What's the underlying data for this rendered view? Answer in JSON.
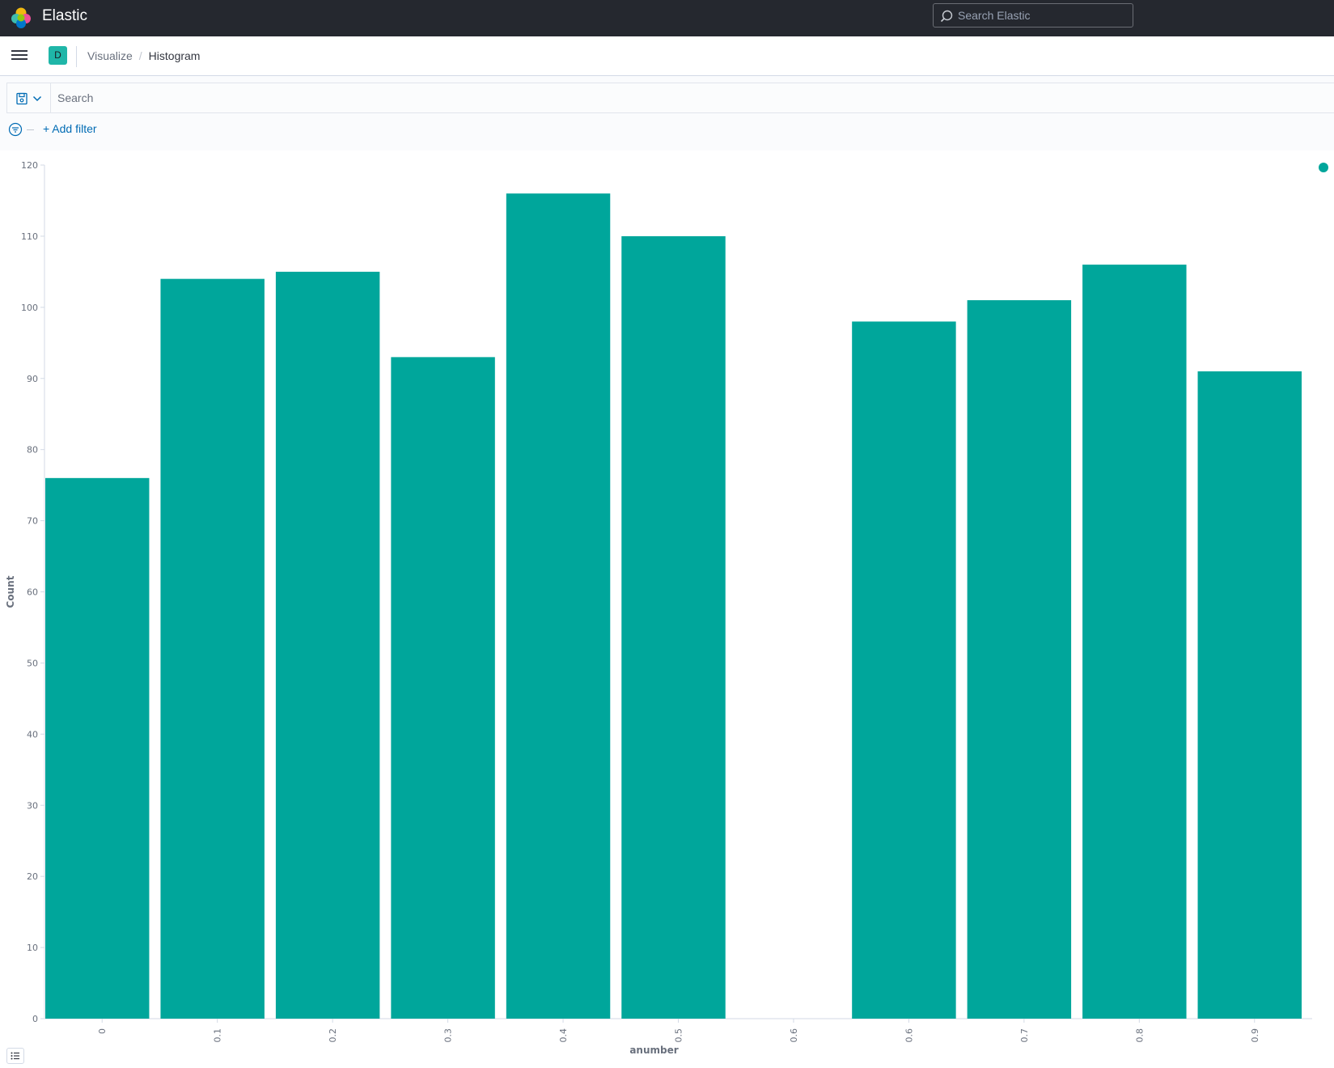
{
  "header": {
    "app_title": "Elastic",
    "search_placeholder": "Search Elastic"
  },
  "navbar": {
    "space_initial": "D",
    "breadcrumbs": [
      "Visualize",
      "Histogram"
    ]
  },
  "query": {
    "placeholder": "Search",
    "add_filter_label": "+ Add filter"
  },
  "icons": {
    "logo": "elastic-logo-icon",
    "search": "search-icon",
    "menu": "hamburger-menu-icon",
    "saved_query": "save-icon",
    "filter_menu": "filter-icon",
    "legend_toggle": "list-icon"
  },
  "colors": {
    "bar": "#00a69b",
    "header_bg": "#25282f",
    "link": "#006bb4"
  },
  "chart_data": {
    "type": "bar",
    "categories": [
      "0",
      "0.1",
      "0.2",
      "0.3",
      "0.4",
      "0.5",
      "0.6",
      "0.6",
      "0.7",
      "0.8",
      "0.9"
    ],
    "values": [
      76,
      104,
      105,
      93,
      116,
      110,
      0,
      98,
      101,
      106,
      91
    ],
    "xlabel": "anumber",
    "ylabel": "Count",
    "ylim": [
      0,
      120
    ],
    "yticks": [
      0,
      10,
      20,
      30,
      40,
      50,
      60,
      70,
      80,
      90,
      100,
      110,
      120
    ],
    "legend": "top-right",
    "grid": false
  }
}
